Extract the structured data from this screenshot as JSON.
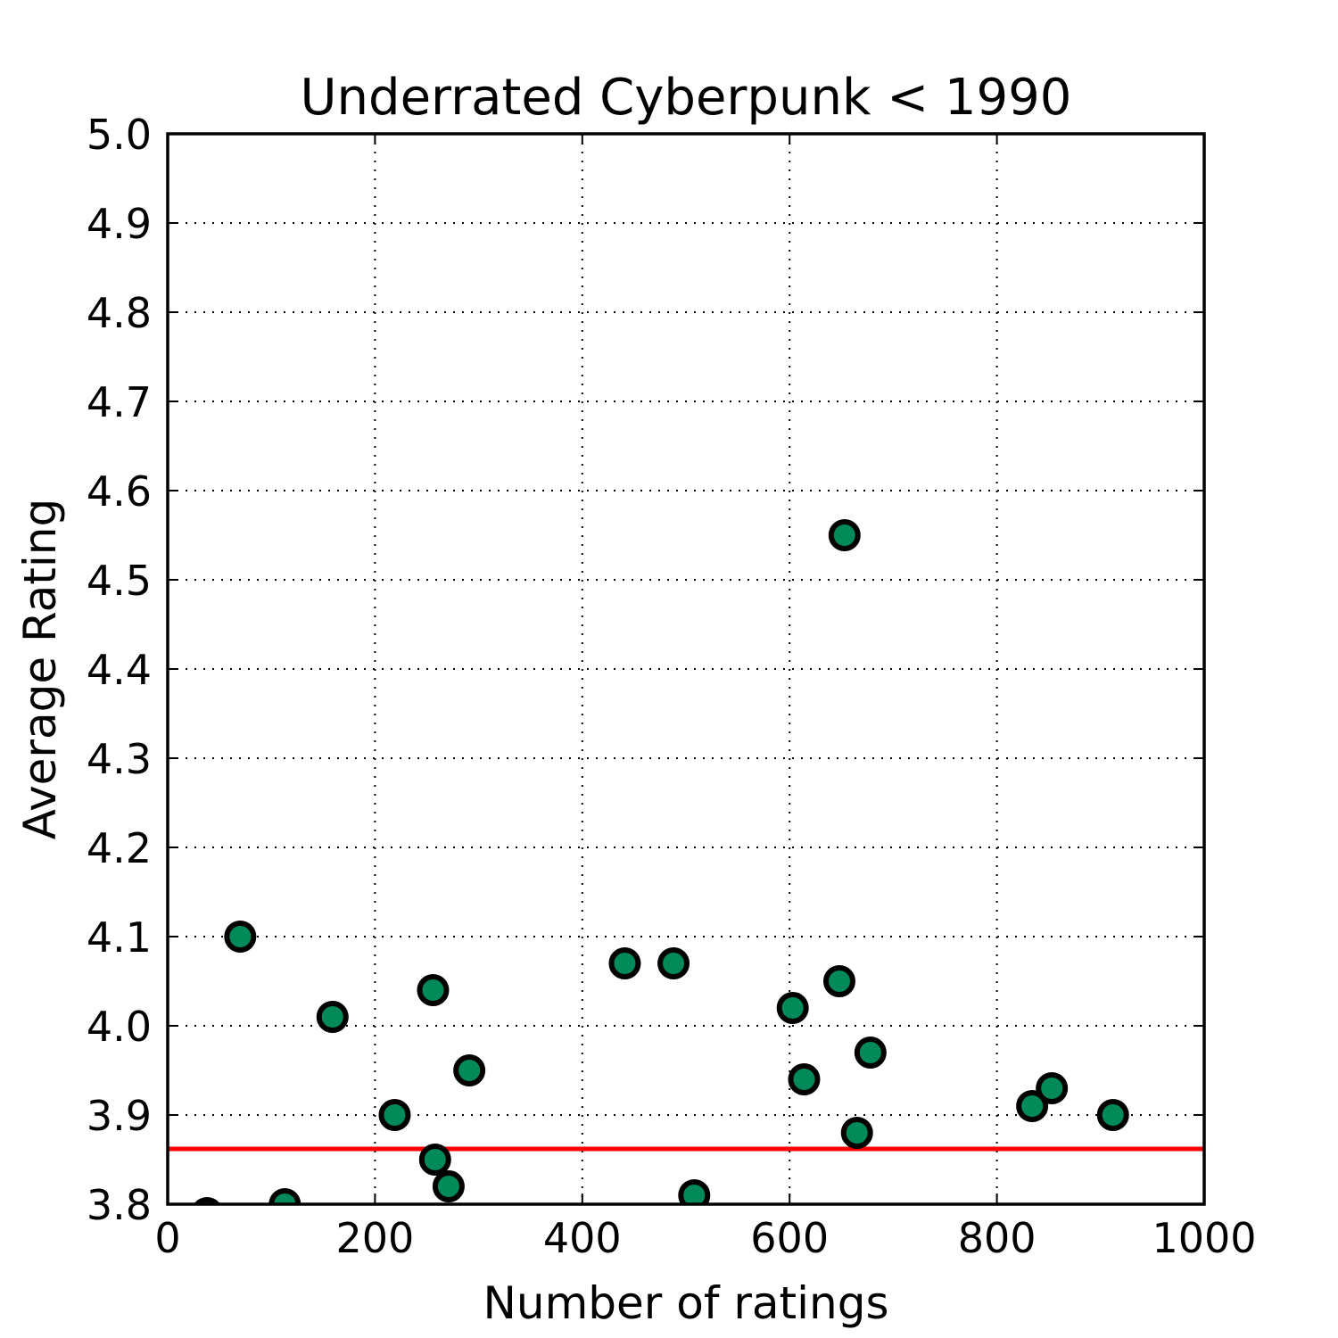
{
  "chart_data": {
    "type": "scatter",
    "title": "Underrated Cyberpunk < 1990",
    "xlabel": "Number of ratings",
    "ylabel": "Average Rating",
    "xlim": [
      0,
      1000
    ],
    "ylim": [
      3.8,
      5.0
    ],
    "xticks": [
      0,
      200,
      400,
      600,
      800,
      1000
    ],
    "xtick_labels": [
      "0",
      "200",
      "400",
      "600",
      "800",
      "1000"
    ],
    "yticks": [
      3.8,
      3.9,
      4.0,
      4.1,
      4.2,
      4.3,
      4.4,
      4.5,
      4.6,
      4.7,
      4.8,
      4.9,
      5.0
    ],
    "ytick_labels": [
      "3.8",
      "3.9",
      "4.0",
      "4.1",
      "4.2",
      "4.3",
      "4.4",
      "4.5",
      "4.6",
      "4.7",
      "4.8",
      "4.9",
      "5.0"
    ],
    "grid": true,
    "series": [
      {
        "color": "#008a5a",
        "edgecolor": "#000000",
        "points": [
          {
            "x": 38,
            "y": 3.79
          },
          {
            "x": 70,
            "y": 4.1
          },
          {
            "x": 113,
            "y": 3.8
          },
          {
            "x": 159,
            "y": 4.01
          },
          {
            "x": 219,
            "y": 3.9
          },
          {
            "x": 256,
            "y": 4.04
          },
          {
            "x": 258,
            "y": 3.85
          },
          {
            "x": 271,
            "y": 3.82
          },
          {
            "x": 291,
            "y": 3.95
          },
          {
            "x": 441,
            "y": 4.07
          },
          {
            "x": 488,
            "y": 4.07
          },
          {
            "x": 508,
            "y": 3.81
          },
          {
            "x": 603,
            "y": 4.02
          },
          {
            "x": 614,
            "y": 3.94
          },
          {
            "x": 648,
            "y": 4.05
          },
          {
            "x": 653,
            "y": 4.55
          },
          {
            "x": 665,
            "y": 3.88
          },
          {
            "x": 678,
            "y": 3.97
          },
          {
            "x": 834,
            "y": 3.91
          },
          {
            "x": 853,
            "y": 3.93
          },
          {
            "x": 912,
            "y": 3.9
          }
        ]
      }
    ],
    "reference_line": {
      "orientation": "horizontal",
      "y": 3.862,
      "color": "#ff0000"
    }
  }
}
